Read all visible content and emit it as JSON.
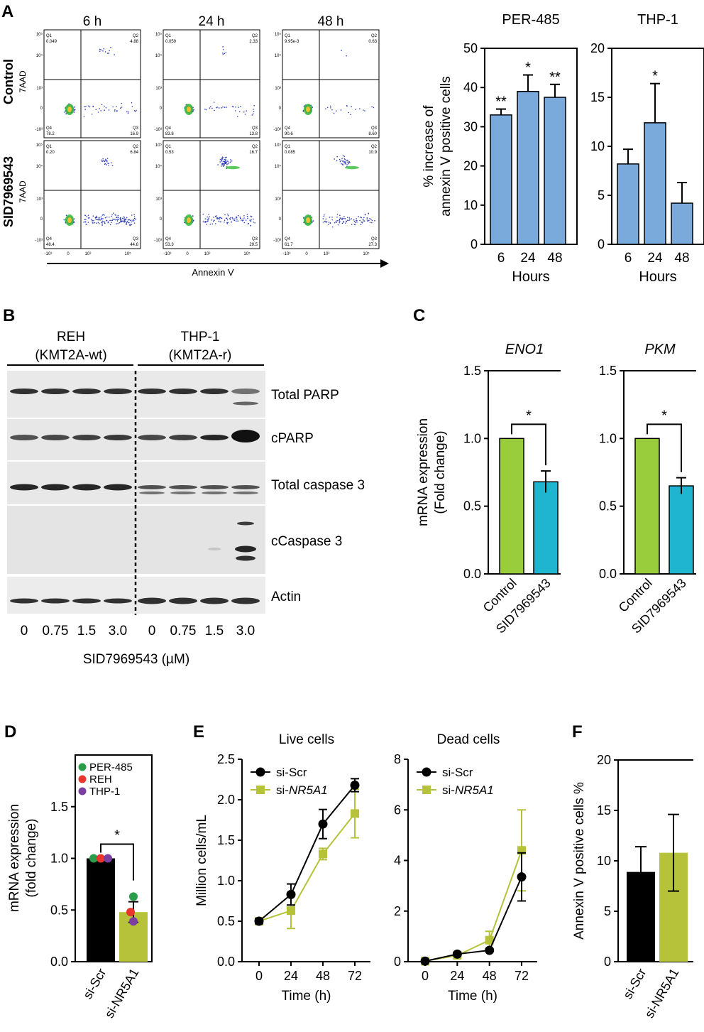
{
  "panel_letters": {
    "A": "A",
    "B": "B",
    "C": "C",
    "D": "D",
    "E": "E",
    "F": "F"
  },
  "panelA": {
    "time_headers": [
      "6 h",
      "24 h",
      "48 h"
    ],
    "row_labels": [
      "Control",
      "SID7969543"
    ],
    "row_axis_label": "7AAD",
    "x_axis_label": "Annexin V",
    "quadrant_names": [
      "Q1",
      "Q2",
      "Q4",
      "Q3"
    ],
    "x_ticks": [
      "-10³",
      "0",
      "10³",
      "10⁵"
    ],
    "y_ticks": [
      "10⁵",
      "10⁴",
      "10³",
      "0",
      "-10³"
    ],
    "plots": [
      {
        "q1": "0.049",
        "q2": "4.88",
        "q4": "78.2",
        "q3": "16.9"
      },
      {
        "q1": "0.059",
        "q2": "2.33",
        "q4": "83.8",
        "q3": "13.8"
      },
      {
        "q1": "9.95e-3",
        "q2": "0.63",
        "q4": "90.6",
        "q3": "8.60"
      },
      {
        "q1": "0.20",
        "q2": "6.84",
        "q4": "48.4",
        "q3": "44.6"
      },
      {
        "q1": "0.53",
        "q2": "16.7",
        "q4": "53.3",
        "q3": "29.5"
      },
      {
        "q1": "0.085",
        "q2": "10.9",
        "q4": "61.7",
        "q3": "27.3"
      }
    ],
    "colors": {
      "bar": "#7aa9dc",
      "scatter": "#2f3fb8",
      "dense": "#3fbf3f",
      "hot": "#f0c030"
    }
  },
  "panelB": {
    "cell_lines": [
      {
        "name": "REH",
        "subtype": "(KMT2A-wt)"
      },
      {
        "name": "THP-1",
        "subtype": "(KMT2A-r)"
      }
    ],
    "blot_labels": [
      "Total PARP",
      "cPARP",
      "Total caspase 3",
      "cCaspase 3",
      "Actin"
    ],
    "concentrations": [
      "0",
      "0.75",
      "1.5",
      "3.0",
      "0",
      "0.75",
      "1.5",
      "3.0"
    ],
    "x_label": "SID7969543 (µM)"
  },
  "chart_data": [
    {
      "id": "A-PER485",
      "type": "bar",
      "title": "PER-485",
      "categories": [
        "6",
        "24",
        "48"
      ],
      "values": [
        33,
        39,
        37.5
      ],
      "errors": [
        1.5,
        4.2,
        3.3
      ],
      "significance": [
        "**",
        "*",
        "**"
      ],
      "xlabel": "Hours",
      "ylabel_lines": [
        "% increase of",
        "annexin V positive cells"
      ],
      "ylim": [
        0,
        50
      ],
      "yticks": [
        "0",
        "10",
        "20",
        "30",
        "40",
        "50"
      ],
      "color": "#7aa9dc"
    },
    {
      "id": "A-THP1",
      "type": "bar",
      "title": "THP-1",
      "categories": [
        "6",
        "24",
        "48"
      ],
      "values": [
        8.2,
        12.4,
        4.2
      ],
      "errors": [
        1.5,
        4.0,
        2.1
      ],
      "significance": [
        "",
        "*",
        ""
      ],
      "xlabel": "Hours",
      "ylim": [
        0,
        20
      ],
      "yticks": [
        "0",
        "5",
        "10",
        "15",
        "20"
      ],
      "color": "#7aa9dc"
    },
    {
      "id": "C-ENO1",
      "type": "bar",
      "title": "ENO1",
      "categories": [
        "Control",
        "SID7969543"
      ],
      "values": [
        1.0,
        0.68
      ],
      "errors": [
        0,
        0.08
      ],
      "colors": [
        "#9acd3c",
        "#1fb5d1"
      ],
      "significance": "*",
      "ylabel_lines": [
        "mRNA expression",
        "(Fold change)"
      ],
      "ylim": [
        0,
        1.5
      ],
      "yticks": [
        "0.0",
        "0.5",
        "1.0",
        "1.5"
      ]
    },
    {
      "id": "C-PKM",
      "type": "bar",
      "title": "PKM",
      "categories": [
        "Control",
        "SID7969543"
      ],
      "values": [
        1.0,
        0.65
      ],
      "errors": [
        0,
        0.06
      ],
      "colors": [
        "#9acd3c",
        "#1fb5d1"
      ],
      "significance": "*",
      "ylim": [
        0,
        1.5
      ],
      "yticks": [
        "0.0",
        "0.5",
        "1.0",
        "1.5"
      ]
    },
    {
      "id": "D",
      "type": "bar",
      "categories": [
        "si-Scr",
        "si-NR5A1"
      ],
      "values": [
        1.0,
        0.48
      ],
      "errors": [
        0,
        0.1
      ],
      "colors": [
        "#000000",
        "#b5c23a"
      ],
      "significance": "*",
      "points": [
        {
          "series": "PER-485",
          "values": [
            1.0,
            0.63
          ],
          "color": "#2a9d4a"
        },
        {
          "series": "REH",
          "values": [
            1.0,
            0.48
          ],
          "color": "#e8362f"
        },
        {
          "series": "THP-1",
          "values": [
            1.0,
            0.39
          ],
          "color": "#7b3fa0"
        }
      ],
      "legend": [
        "PER-485",
        "REH",
        "THP-1"
      ],
      "ylabel_lines": [
        "mRNA expression",
        "(fold change)"
      ],
      "ylim": [
        0,
        2.0
      ],
      "yticks": [
        "0.0",
        "0.5",
        "1.0",
        "1.5"
      ]
    },
    {
      "id": "E-live",
      "type": "line",
      "title": "Live cells",
      "x": [
        0,
        24,
        48,
        72
      ],
      "series": [
        {
          "name": "si-Scr",
          "values": [
            0.5,
            0.83,
            1.7,
            2.18
          ],
          "errors": [
            0.03,
            0.13,
            0.18,
            0.08
          ],
          "color": "#000000",
          "marker": "circle"
        },
        {
          "name": "si-NR5A1",
          "values": [
            0.5,
            0.63,
            1.33,
            1.83
          ],
          "errors": [
            0.03,
            0.22,
            0.07,
            0.3
          ],
          "color": "#b5c23a",
          "marker": "square"
        }
      ],
      "legend": [
        "si-Scr",
        "si-NR5A1"
      ],
      "xlabel": "Time (h)",
      "ylabel": "Million cells/mL",
      "xticks": [
        "0",
        "24",
        "48",
        "72"
      ],
      "ylim": [
        0,
        2.5
      ],
      "yticks": [
        "0.0",
        "0.5",
        "1.0",
        "1.5",
        "2.0",
        "2.5"
      ]
    },
    {
      "id": "E-dead",
      "type": "line",
      "title": "Dead cells",
      "x": [
        0,
        24,
        48,
        72
      ],
      "series": [
        {
          "name": "si-Scr",
          "values": [
            0.02,
            0.3,
            0.45,
            3.35
          ],
          "errors": [
            0.02,
            0.05,
            0.05,
            0.95
          ],
          "color": "#000000",
          "marker": "circle"
        },
        {
          "name": "si-NR5A1",
          "values": [
            0.02,
            0.25,
            0.85,
            4.4
          ],
          "errors": [
            0.02,
            0.05,
            0.35,
            1.6
          ],
          "color": "#b5c23a",
          "marker": "square"
        }
      ],
      "legend": [
        "si-Scr",
        "si-NR5A1"
      ],
      "xlabel": "Time (h)",
      "xticks": [
        "0",
        "24",
        "48",
        "72"
      ],
      "ylim": [
        0,
        8
      ],
      "yticks": [
        "0",
        "2",
        "4",
        "6",
        "8"
      ]
    },
    {
      "id": "F",
      "type": "bar",
      "categories": [
        "si-Scr",
        "si-NR5A1"
      ],
      "values": [
        8.9,
        10.8
      ],
      "errors": [
        2.5,
        3.8
      ],
      "colors": [
        "#000000",
        "#b5c23a"
      ],
      "ylabel": "Annexin V positive cells %",
      "ylim": [
        0,
        20
      ],
      "yticks": [
        "0",
        "5",
        "10",
        "15",
        "20"
      ]
    }
  ]
}
